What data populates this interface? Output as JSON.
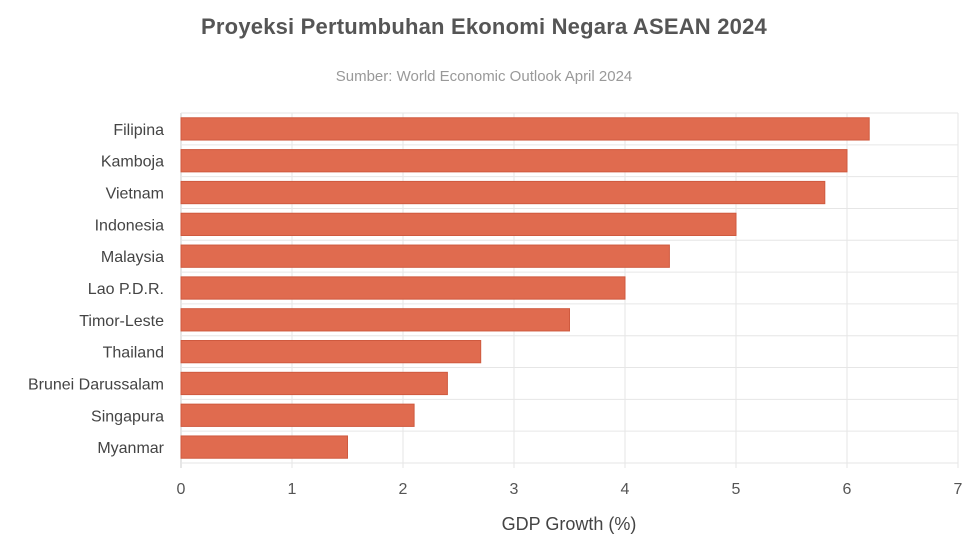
{
  "chart_data": {
    "type": "bar",
    "orientation": "horizontal",
    "title": "Proyeksi Pertumbuhan Ekonomi Negara ASEAN 2024",
    "subtitle": "Sumber: World Economic Outlook April 2024",
    "xlabel": "GDP Growth (%)",
    "ylabel": "",
    "categories": [
      "Filipina",
      "Kamboja",
      "Vietnam",
      "Indonesia",
      "Malaysia",
      "Lao P.D.R.",
      "Timor-Leste",
      "Thailand",
      "Brunei Darussalam",
      "Singapura",
      "Myanmar"
    ],
    "values": [
      6.2,
      6.0,
      5.8,
      5.0,
      4.4,
      4.0,
      3.5,
      2.7,
      2.4,
      2.1,
      1.5
    ],
    "xlim": [
      0,
      7
    ],
    "xticks": [
      "0",
      "1",
      "2",
      "3",
      "4",
      "5",
      "6",
      "7"
    ],
    "grid": true,
    "legend": "none",
    "colors": {
      "bar": "#e06b4f",
      "bar_edge": "#cf5a3f",
      "grid": "#e6e6e6",
      "axis": "#cccccc"
    }
  }
}
